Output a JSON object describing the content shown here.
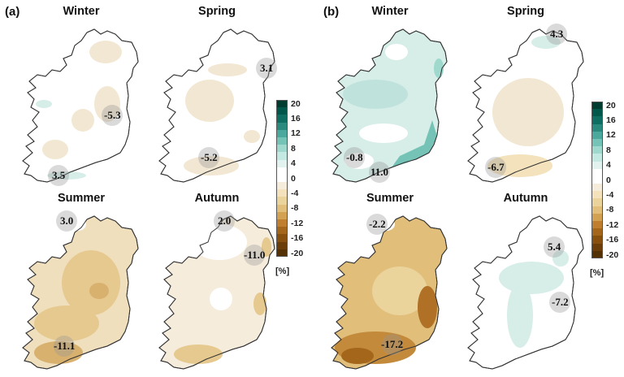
{
  "figure": {
    "panels": [
      {
        "label": "(a)",
        "maps": [
          {
            "season": "Winter",
            "annotations": [
              {
                "value": "-5.3"
              },
              {
                "value": "3.5"
              }
            ],
            "dominant_color": "#f2e7d2"
          },
          {
            "season": "Spring",
            "annotations": [
              {
                "value": "3.1"
              },
              {
                "value": "-5.2"
              }
            ],
            "dominant_color": "#f2e7d2"
          },
          {
            "season": "Summer",
            "annotations": [
              {
                "value": "3.0"
              },
              {
                "value": "-11.1"
              }
            ],
            "dominant_color": "#e6c98f"
          },
          {
            "season": "Autumn",
            "annotations": [
              {
                "value": "2.0"
              },
              {
                "value": "-11.0"
              }
            ],
            "dominant_color": "#efe0c2"
          }
        ]
      },
      {
        "label": "(b)",
        "maps": [
          {
            "season": "Winter",
            "annotations": [
              {
                "value": "-0.8"
              },
              {
                "value": "11.0"
              }
            ],
            "dominant_color": "#bfe3dc"
          },
          {
            "season": "Spring",
            "annotations": [
              {
                "value": "4.3"
              },
              {
                "value": "-6.7"
              }
            ],
            "dominant_color": "#f2e7d2"
          },
          {
            "season": "Summer",
            "annotations": [
              {
                "value": "-2.2"
              },
              {
                "value": "-17.2"
              }
            ],
            "dominant_color": "#cf9d55"
          },
          {
            "season": "Autumn",
            "annotations": [
              {
                "value": "5.4"
              },
              {
                "value": "-7.2"
              }
            ],
            "dominant_color": "#d3ebe6"
          }
        ]
      }
    ],
    "colorbar": {
      "ticks": [
        "20",
        "16",
        "12",
        "8",
        "4",
        "0",
        "-4",
        "-8",
        "-12",
        "-16",
        "-20"
      ],
      "unit": "[%]",
      "colors": [
        "#003c30",
        "#01574a",
        "#0f6e62",
        "#2a8a7e",
        "#4aa89c",
        "#74c3b6",
        "#9fd8cd",
        "#c4e8e2",
        "#e2f2ef",
        "#ffffff",
        "#ffffff",
        "#f5ecdc",
        "#f3e2bb",
        "#ebd39c",
        "#e1bf7a",
        "#d3a152",
        "#c07f2e",
        "#a4661b",
        "#87500f",
        "#6b3d08",
        "#543005"
      ]
    }
  },
  "chart_data": {
    "type": "heatmap",
    "title": "",
    "description": "Seasonal percentage change maps of Ireland, two panels (a) and (b), each with Winter, Spring, Summer, Autumn",
    "colorbar": {
      "label": "[%]",
      "range": [
        -20,
        20
      ],
      "step": 2,
      "ticks": [
        20,
        16,
        12,
        8,
        4,
        0,
        -4,
        -8,
        -12,
        -16,
        -20
      ]
    },
    "panels": [
      {
        "label": "(a)",
        "series": [
          {
            "name": "Winter",
            "min": -5.3,
            "max": 3.5
          },
          {
            "name": "Spring",
            "min": -5.2,
            "max": 3.1
          },
          {
            "name": "Summer",
            "min": -11.1,
            "max": 3.0
          },
          {
            "name": "Autumn",
            "min": -11.0,
            "max": 2.0
          }
        ]
      },
      {
        "label": "(b)",
        "series": [
          {
            "name": "Winter",
            "min": -0.8,
            "max": 11.0
          },
          {
            "name": "Spring",
            "min": -6.7,
            "max": 4.3
          },
          {
            "name": "Summer",
            "min": -17.2,
            "max": -2.2
          },
          {
            "name": "Autumn",
            "min": -7.2,
            "max": 5.4
          }
        ]
      }
    ]
  }
}
